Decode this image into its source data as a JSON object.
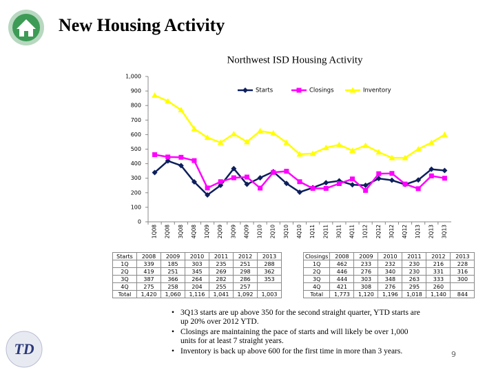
{
  "header": {
    "title": "New Housing Activity"
  },
  "logo": {
    "text": "TD"
  },
  "chart_data": {
    "type": "line",
    "title": "Northwest ISD Housing Activity",
    "categories": [
      "1Q08",
      "2Q08",
      "3Q08",
      "4Q08",
      "1Q09",
      "2Q09",
      "3Q09",
      "4Q09",
      "1Q10",
      "2Q10",
      "3Q10",
      "4Q10",
      "1Q11",
      "2Q11",
      "3Q11",
      "4Q11",
      "1Q12",
      "2Q12",
      "3Q12",
      "4Q12",
      "1Q13",
      "2Q13",
      "3Q13"
    ],
    "series": [
      {
        "name": "Starts",
        "color": "#0d1f5c",
        "marker": "diamond",
        "values": [
          339,
          419,
          387,
          275,
          185,
          251,
          366,
          258,
          303,
          345,
          264,
          204,
          235,
          269,
          282,
          255,
          251,
          298,
          286,
          257,
          288,
          362,
          353
        ]
      },
      {
        "name": "Closings",
        "color": "#ff00ff",
        "marker": "square",
        "values": [
          462,
          446,
          444,
          421,
          233,
          276,
          303,
          308,
          232,
          340,
          348,
          276,
          230,
          230,
          263,
          295,
          216,
          331,
          333,
          260,
          228,
          316,
          300
        ]
      },
      {
        "name": "Inventory",
        "color": "#ffff00",
        "marker": "triangle",
        "values": [
          870,
          830,
          770,
          640,
          580,
          545,
          605,
          550,
          625,
          610,
          545,
          465,
          470,
          510,
          530,
          490,
          525,
          480,
          440,
          440,
          500,
          545,
          600
        ]
      }
    ],
    "ylim": [
      0,
      1000
    ],
    "yticks": [
      0,
      100,
      200,
      300,
      400,
      500,
      600,
      700,
      800,
      900,
      {
        "value": 1000,
        "label": "1,000"
      }
    ],
    "grid": false,
    "legend": "top"
  },
  "starts_table": {
    "header": [
      "Starts",
      "2008",
      "2009",
      "2010",
      "2011",
      "2012",
      "2013"
    ],
    "rows": [
      [
        "1Q",
        "339",
        "185",
        "303",
        "235",
        "251",
        "288"
      ],
      [
        "2Q",
        "419",
        "251",
        "345",
        "269",
        "298",
        "362"
      ],
      [
        "3Q",
        "387",
        "366",
        "264",
        "282",
        "286",
        "353"
      ],
      [
        "4Q",
        "275",
        "258",
        "204",
        "255",
        "257",
        ""
      ],
      [
        "Total",
        "1,420",
        "1,060",
        "1,116",
        "1,041",
        "1,092",
        "1,003"
      ]
    ]
  },
  "closings_table": {
    "header": [
      "Closings",
      "2008",
      "2009",
      "2010",
      "2011",
      "2012",
      "2013"
    ],
    "rows": [
      [
        "1Q",
        "462",
        "233",
        "232",
        "230",
        "216",
        "228"
      ],
      [
        "2Q",
        "446",
        "276",
        "340",
        "230",
        "331",
        "316"
      ],
      [
        "3Q",
        "444",
        "303",
        "348",
        "263",
        "333",
        "300"
      ],
      [
        "4Q",
        "421",
        "308",
        "276",
        "295",
        "260",
        ""
      ],
      [
        "Total",
        "1,773",
        "1,120",
        "1,196",
        "1,018",
        "1,140",
        "844"
      ]
    ]
  },
  "bullets": [
    "3Q13 starts are up above 350 for the second straight quarter, YTD starts are up 20% over 2012 YTD.",
    "Closings are maintaining the pace of starts and will likely be over 1,000 units for at least 7 straight years.",
    "Inventory is back up above 600 for the first time in more than 3 years."
  ],
  "page_number": "9"
}
